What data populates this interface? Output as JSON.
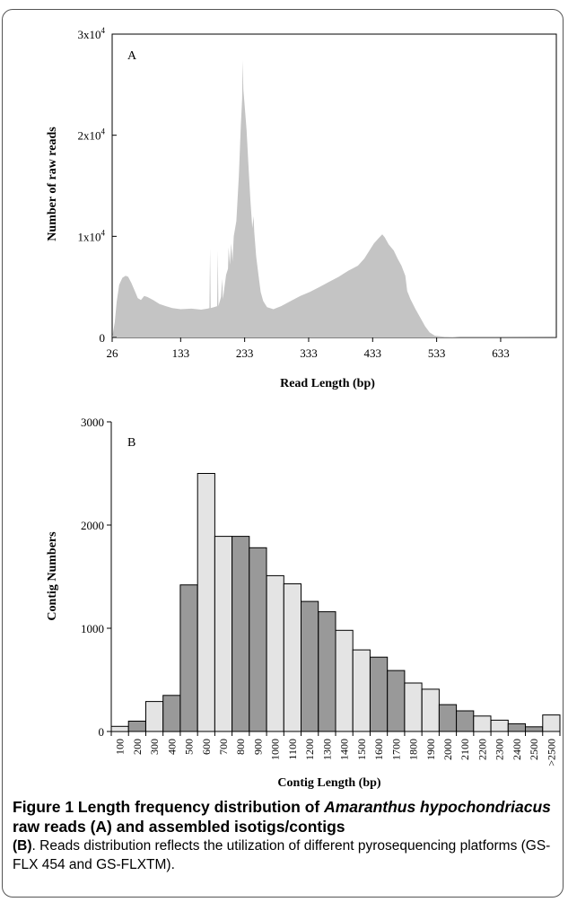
{
  "chart_data": [
    {
      "type": "area",
      "panel_label": "A",
      "xlabel": "Read Length (bp)",
      "ylabel": "Number of raw reads",
      "xlim": [
        26,
        720
      ],
      "ylim": [
        0,
        30000
      ],
      "x_ticks": [
        "26",
        "133",
        "233",
        "333",
        "433",
        "533",
        "633"
      ],
      "x_tick_values": [
        26,
        133,
        233,
        333,
        433,
        533,
        633
      ],
      "y_ticks": [
        {
          "value": 0,
          "mantissa": "0",
          "exp": ""
        },
        {
          "value": 10000,
          "mantissa": "1x10",
          "exp": "4"
        },
        {
          "value": 20000,
          "mantissa": "2x10",
          "exp": "4"
        },
        {
          "value": 30000,
          "mantissa": "3x10",
          "exp": "4"
        }
      ],
      "fill_color": "#c4c4c4",
      "points": [
        [
          26,
          0
        ],
        [
          30,
          1500
        ],
        [
          33,
          3500
        ],
        [
          37,
          5200
        ],
        [
          42,
          5900
        ],
        [
          47,
          6100
        ],
        [
          51,
          6000
        ],
        [
          56,
          5400
        ],
        [
          62,
          4500
        ],
        [
          66,
          3900
        ],
        [
          71,
          3700
        ],
        [
          76,
          4100
        ],
        [
          81,
          4000
        ],
        [
          90,
          3700
        ],
        [
          100,
          3300
        ],
        [
          110,
          3100
        ],
        [
          120,
          2900
        ],
        [
          133,
          2800
        ],
        [
          150,
          2850
        ],
        [
          165,
          2750
        ],
        [
          175,
          2850
        ],
        [
          178,
          2900
        ],
        [
          179,
          8800
        ],
        [
          180,
          2900
        ],
        [
          185,
          3000
        ],
        [
          190,
          3100
        ],
        [
          191,
          8600
        ],
        [
          192,
          3100
        ],
        [
          196,
          4000
        ],
        [
          198,
          5800
        ],
        [
          199,
          3800
        ],
        [
          204,
          6200
        ],
        [
          207,
          6800
        ],
        [
          208,
          8900
        ],
        [
          210,
          7200
        ],
        [
          212,
          9300
        ],
        [
          214,
          7500
        ],
        [
          216,
          10000
        ],
        [
          220,
          11500
        ],
        [
          224,
          16000
        ],
        [
          227,
          21000
        ],
        [
          229,
          23500
        ],
        [
          230,
          27400
        ],
        [
          231,
          24500
        ],
        [
          233,
          23000
        ],
        [
          236,
          20500
        ],
        [
          239,
          17000
        ],
        [
          242,
          13500
        ],
        [
          245,
          10800
        ],
        [
          247,
          12000
        ],
        [
          248,
          10500
        ],
        [
          251,
          8000
        ],
        [
          255,
          6000
        ],
        [
          258,
          4500
        ],
        [
          262,
          3600
        ],
        [
          268,
          3000
        ],
        [
          278,
          2800
        ],
        [
          290,
          3100
        ],
        [
          305,
          3600
        ],
        [
          320,
          4100
        ],
        [
          335,
          4500
        ],
        [
          350,
          5000
        ],
        [
          365,
          5500
        ],
        [
          380,
          6000
        ],
        [
          395,
          6600
        ],
        [
          410,
          7100
        ],
        [
          420,
          7800
        ],
        [
          428,
          8600
        ],
        [
          435,
          9300
        ],
        [
          442,
          9800
        ],
        [
          448,
          10200
        ],
        [
          452,
          9900
        ],
        [
          458,
          9200
        ],
        [
          466,
          8600
        ],
        [
          472,
          7800
        ],
        [
          478,
          7100
        ],
        [
          484,
          6100
        ],
        [
          487,
          4600
        ],
        [
          492,
          3800
        ],
        [
          500,
          2800
        ],
        [
          508,
          1900
        ],
        [
          515,
          1100
        ],
        [
          522,
          500
        ],
        [
          530,
          180
        ],
        [
          545,
          60
        ],
        [
          570,
          30
        ],
        [
          620,
          20
        ],
        [
          720,
          10
        ]
      ]
    },
    {
      "type": "bar",
      "panel_label": "B",
      "xlabel": "Contig Length (bp)",
      "ylabel": "Contig Numbers",
      "ylim": [
        0,
        3000
      ],
      "y_ticks": [
        "0",
        "1000",
        "2000",
        "3000"
      ],
      "y_tick_values": [
        0,
        1000,
        2000,
        3000
      ],
      "categories": [
        "100",
        "200",
        "300",
        "400",
        "500",
        "600",
        "700",
        "800",
        "900",
        "1000",
        "1100",
        "1200",
        "1300",
        "1400",
        "1500",
        "1600",
        "1700",
        "1800",
        "1900",
        "2000",
        "2100",
        "2200",
        "2300",
        "2400",
        "2500",
        ">2500"
      ],
      "values": [
        50,
        100,
        290,
        350,
        1420,
        2500,
        1890,
        1890,
        1780,
        1510,
        1430,
        1260,
        1160,
        980,
        790,
        720,
        590,
        470,
        410,
        260,
        200,
        150,
        110,
        75,
        45,
        160
      ],
      "light_color": "#e4e4e4",
      "dark_color": "#999999"
    }
  ],
  "caption": {
    "prefix": "Figure 1 Length frequency distribution of ",
    "species": "Amaranthus hypochondriacus",
    "rest": " raw reads (A) and assembled isotigs/contigs",
    "bold_b": "(B)",
    "body": ". Reads distribution reflects the utilization of different pyrosequencing platforms (GS-FLX 454 and GS-FLXTM)."
  }
}
